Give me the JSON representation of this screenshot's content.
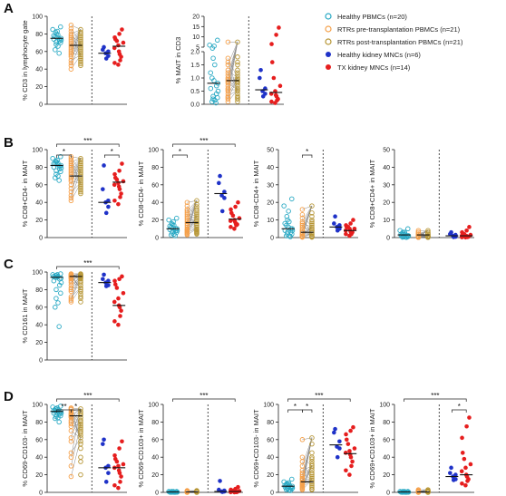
{
  "colors": {
    "healthy_pbmc": "#29a9c4",
    "rtr_pre": "#f5a04a",
    "rtr_post": "#b69534",
    "healthy_kidney": "#1f32c8",
    "tx_kidney": "#e61e1e",
    "connector": "#888888"
  },
  "legend": [
    {
      "label": "Healthy PBMCs (n=20)",
      "marker": "open",
      "color_key": "healthy_pbmc"
    },
    {
      "label": "RTRs pre-transplantation PBMCs (n=21)",
      "marker": "open",
      "color_key": "rtr_pre"
    },
    {
      "label": "RTRs post-transplantation PBMCs (n=21)",
      "marker": "open",
      "color_key": "rtr_post"
    },
    {
      "label": "Healthy kidney MNCs (n=6)",
      "marker": "filled",
      "color_key": "healthy_kidney"
    },
    {
      "label": "TX kidney MNCs (n=14)",
      "marker": "filled",
      "color_key": "tx_kidney"
    }
  ],
  "chart_data": [
    {
      "id": "A1",
      "panel": "A",
      "type": "scatter",
      "ylabel": "% CD3 in lymphocyte gate",
      "ylim": [
        0,
        100
      ],
      "yticks": [
        0,
        20,
        40,
        60,
        80,
        100
      ],
      "medians": [
        75,
        67,
        58,
        66
      ],
      "stars": [],
      "groups": [
        [
          88,
          85,
          83,
          82,
          80,
          79,
          78,
          77,
          76,
          75,
          74,
          74,
          73,
          72,
          71,
          70,
          68,
          66,
          62,
          58
        ],
        [
          90,
          86,
          83,
          80,
          78,
          76,
          74,
          72,
          70,
          68,
          66,
          64,
          62,
          60,
          58,
          56,
          54,
          50,
          47,
          44,
          40
        ],
        [
          85,
          82,
          80,
          78,
          76,
          74,
          72,
          70,
          68,
          66,
          64,
          62,
          60,
          58,
          56,
          54,
          52,
          50,
          48,
          46,
          44
        ],
        [
          65,
          62,
          60,
          58,
          55,
          52
        ],
        [
          85,
          80,
          76,
          74,
          72,
          70,
          67,
          64,
          60,
          57,
          54,
          50,
          47,
          45
        ]
      ]
    },
    {
      "id": "A2",
      "panel": "A",
      "type": "scatter",
      "ylabel": "% MAIT in CD3",
      "broken_axis": true,
      "ylim_lower": [
        0,
        2.0
      ],
      "ylim_upper": [
        5,
        20
      ],
      "yticks_lower": [
        0.0,
        0.5,
        1.0,
        1.5,
        2.0
      ],
      "yticks_upper": [
        5,
        10,
        15,
        20
      ],
      "medians": [
        0.8,
        0.9,
        0.55,
        0.45
      ],
      "stars": [],
      "groups": [
        [
          8.4,
          6.0,
          5.5,
          4.5,
          1.75,
          1.5,
          1.2,
          1.0,
          0.9,
          0.8,
          0.7,
          0.6,
          0.5,
          0.4,
          0.3,
          0.25,
          0.2,
          0.15,
          0.1,
          0.05
        ],
        [
          7.5,
          1.75,
          1.6,
          1.5,
          1.3,
          1.2,
          1.1,
          1.0,
          0.95,
          0.9,
          0.85,
          0.8,
          0.7,
          0.6,
          0.55,
          0.5,
          0.4,
          0.3,
          0.25,
          0.2,
          0.1
        ],
        [
          7.5,
          1.8,
          1.6,
          1.5,
          1.3,
          1.2,
          1.1,
          1.0,
          0.95,
          0.9,
          0.85,
          0.8,
          0.7,
          0.6,
          0.55,
          0.5,
          0.4,
          0.3,
          0.25,
          0.2,
          0.1
        ],
        [
          1.3,
          1.0,
          0.6,
          0.5,
          0.4,
          0.3
        ],
        [
          14.5,
          11.0,
          6.5,
          1.6,
          1.0,
          0.7,
          0.5,
          0.4,
          0.35,
          0.3,
          0.2,
          0.15,
          0.1,
          0.05
        ]
      ]
    },
    {
      "id": "B1",
      "panel": "B",
      "type": "scatter",
      "ylabel": "% CD8+CD4- in MAIT",
      "ylim": [
        0,
        100
      ],
      "yticks": [
        0,
        20,
        40,
        60,
        80,
        100
      ],
      "medians": [
        82,
        70,
        40,
        63
      ],
      "stars": [
        "*",
        "*",
        "***"
      ],
      "groups": [
        [
          92,
          90,
          88,
          87,
          86,
          85,
          84,
          84,
          83,
          82,
          81,
          80,
          79,
          78,
          76,
          75,
          72,
          70,
          68,
          65
        ],
        [
          92,
          90,
          88,
          86,
          84,
          82,
          80,
          78,
          76,
          74,
          72,
          70,
          68,
          66,
          64,
          60,
          56,
          52,
          48,
          45,
          42
        ],
        [
          90,
          88,
          86,
          84,
          82,
          80,
          78,
          76,
          74,
          72,
          70,
          68,
          66,
          64,
          62,
          60,
          58,
          56,
          54,
          52,
          50
        ],
        [
          82,
          55,
          42,
          40,
          35,
          28
        ],
        [
          84,
          76,
          72,
          68,
          66,
          64,
          62,
          60,
          58,
          55,
          50,
          46,
          42,
          38
        ]
      ]
    },
    {
      "id": "B2",
      "panel": "B",
      "type": "scatter",
      "ylabel": "% CD8-CD4- in MAIT",
      "ylim": [
        0,
        100
      ],
      "yticks": [
        0,
        20,
        40,
        60,
        80,
        100
      ],
      "medians": [
        10,
        17,
        50,
        21
      ],
      "stars": [
        "*",
        "***"
      ],
      "groups": [
        [
          22,
          20,
          18,
          16,
          15,
          14,
          13,
          12,
          11,
          10,
          10,
          9,
          8,
          8,
          7,
          6,
          5,
          4,
          3,
          2
        ],
        [
          40,
          36,
          32,
          30,
          28,
          26,
          24,
          22,
          20,
          18,
          16,
          14,
          12,
          10,
          9,
          8,
          7,
          6,
          5,
          4,
          3
        ],
        [
          42,
          38,
          35,
          32,
          30,
          28,
          26,
          24,
          22,
          20,
          18,
          16,
          14,
          12,
          10,
          9,
          8,
          7,
          6,
          5,
          4
        ],
        [
          70,
          62,
          52,
          48,
          45,
          30
        ],
        [
          40,
          35,
          32,
          28,
          25,
          22,
          20,
          19,
          18,
          16,
          15,
          14,
          12,
          10
        ]
      ]
    },
    {
      "id": "B3",
      "panel": "B",
      "type": "scatter",
      "ylabel": "% CD8-CD4+ in MAIT",
      "ylim": [
        0,
        50
      ],
      "yticks": [
        0,
        10,
        20,
        30,
        40,
        50
      ],
      "medians": [
        5,
        3,
        6,
        4
      ],
      "stars": [
        "*"
      ],
      "groups": [
        [
          22,
          18,
          15,
          12,
          10,
          9,
          8,
          7,
          6,
          5,
          5,
          4,
          4,
          3,
          3,
          2,
          2,
          1,
          1,
          0.5
        ],
        [
          16,
          13,
          11,
          9,
          8,
          7,
          6,
          5,
          4,
          4,
          3,
          3,
          2,
          2,
          2,
          1,
          1,
          1,
          0.5,
          0.5,
          0.2
        ],
        [
          18,
          14,
          12,
          10,
          9,
          8,
          7,
          6,
          5,
          5,
          4,
          4,
          3,
          3,
          2,
          2,
          1,
          1,
          0.5,
          0.5,
          0.2
        ],
        [
          12,
          8,
          7,
          6,
          5,
          4
        ],
        [
          10,
          8,
          7,
          6,
          6,
          5,
          5,
          4,
          4,
          3,
          3,
          2,
          2,
          1
        ]
      ]
    },
    {
      "id": "B4",
      "panel": "B",
      "type": "scatter",
      "ylabel": "% CD8+CD4+ in MAIT",
      "ylim": [
        0,
        50
      ],
      "yticks": [
        0,
        10,
        20,
        30,
        40,
        50
      ],
      "medians": [
        1.5,
        1.5,
        1,
        1
      ],
      "stars": [],
      "groups": [
        [
          5,
          4,
          3,
          3,
          2,
          2,
          2,
          2,
          1,
          1,
          1,
          1,
          1,
          1,
          0.5,
          0.5,
          0.5,
          0.3,
          0.2,
          0.1
        ],
        [
          4,
          3,
          3,
          2,
          2,
          2,
          2,
          1,
          1,
          1,
          1,
          1,
          1,
          0.5,
          0.5,
          0.5,
          0.5,
          0.3,
          0.2,
          0.1,
          0.1
        ],
        [
          4,
          3,
          3,
          2,
          2,
          2,
          2,
          1,
          1,
          1,
          1,
          1,
          1,
          0.5,
          0.5,
          0.5,
          0.5,
          0.3,
          0.2,
          0.1,
          0.1
        ],
        [
          3,
          2,
          1.5,
          1,
          0.5,
          0.3
        ],
        [
          6,
          4,
          3,
          2,
          2,
          1.5,
          1,
          1,
          1,
          0.5,
          0.5,
          0.3,
          0.2,
          0.1
        ]
      ]
    },
    {
      "id": "C1",
      "panel": "C",
      "type": "scatter",
      "ylabel": "% CD161 in MAIT",
      "ylim": [
        0,
        100
      ],
      "yticks": [
        0,
        20,
        40,
        60,
        80,
        100
      ],
      "medians": [
        94,
        95,
        88,
        62
      ],
      "stars": [
        "***"
      ],
      "groups": [
        [
          98,
          97,
          97,
          96,
          96,
          95,
          95,
          94,
          94,
          93,
          92,
          90,
          88,
          85,
          80,
          76,
          70,
          65,
          60,
          38
        ],
        [
          98,
          97,
          97,
          96,
          96,
          95,
          95,
          94,
          94,
          93,
          92,
          90,
          88,
          85,
          82,
          80,
          78,
          72,
          70,
          68,
          66
        ],
        [
          98,
          97,
          97,
          96,
          96,
          95,
          95,
          94,
          94,
          93,
          92,
          90,
          88,
          85,
          82,
          80,
          78,
          75,
          72,
          70,
          66
        ],
        [
          97,
          92,
          90,
          88,
          85,
          84
        ],
        [
          95,
          92,
          90,
          86,
          82,
          76,
          70,
          66,
          62,
          60,
          56,
          50,
          44,
          40
        ]
      ]
    },
    {
      "id": "D1",
      "panel": "D",
      "type": "scatter",
      "ylabel": "% CD69-CD103- in MAIT",
      "ylim": [
        0,
        100
      ],
      "yticks": [
        0,
        20,
        40,
        60,
        80,
        100
      ],
      "medians": [
        92,
        87,
        28,
        28
      ],
      "stars": [
        "**",
        "*",
        "***"
      ],
      "groups": [
        [
          98,
          97,
          96,
          95,
          95,
          94,
          93,
          93,
          92,
          92,
          91,
          90,
          90,
          89,
          88,
          87,
          86,
          85,
          84,
          80
        ],
        [
          96,
          95,
          94,
          92,
          90,
          89,
          88,
          87,
          86,
          85,
          82,
          80,
          78,
          75,
          70,
          62,
          58,
          45,
          40,
          30,
          18
        ],
        [
          95,
          92,
          90,
          88,
          85,
          82,
          80,
          78,
          76,
          74,
          72,
          70,
          68,
          65,
          62,
          58,
          55,
          50,
          40,
          35,
          20
        ],
        [
          60,
          55,
          30,
          28,
          22,
          12
        ],
        [
          58,
          50,
          42,
          38,
          35,
          32,
          30,
          28,
          25,
          22,
          18,
          12,
          8,
          5
        ]
      ]
    },
    {
      "id": "D2",
      "panel": "D",
      "type": "scatter",
      "ylabel": "% CD69-CD103+ in MAIT",
      "ylim": [
        0,
        100
      ],
      "yticks": [
        0,
        20,
        40,
        60,
        80,
        100
      ],
      "medians": [
        0.5,
        0.5,
        1,
        1
      ],
      "stars": [
        "***"
      ],
      "groups": [
        [
          1,
          1,
          1,
          1,
          0.5,
          0.5,
          0.5,
          0.5,
          0.5,
          0.5,
          0.3,
          0.3,
          0.3,
          0.3,
          0.2,
          0.2,
          0.2,
          0.1,
          0.1,
          0.1
        ],
        [
          2,
          1,
          1,
          1,
          1,
          0.5,
          0.5,
          0.5,
          0.5,
          0.5,
          0.5,
          0.3,
          0.3,
          0.3,
          0.3,
          0.2,
          0.2,
          0.2,
          0.1,
          0.1,
          0.1
        ],
        [
          2,
          1,
          1,
          1,
          1,
          0.5,
          0.5,
          0.5,
          0.5,
          0.5,
          0.5,
          0.3,
          0.3,
          0.3,
          0.3,
          0.2,
          0.2,
          0.2,
          0.1,
          0.1,
          0.1
        ],
        [
          13,
          3,
          2,
          1,
          1,
          0.5
        ],
        [
          6,
          4,
          3,
          2,
          2,
          1.5,
          1,
          1,
          1,
          0.5,
          0.5,
          0.3,
          0.2,
          0.1
        ]
      ]
    },
    {
      "id": "D3",
      "panel": "D",
      "type": "scatter",
      "ylabel": "% CD69+CD103- in MAIT",
      "ylim": [
        0,
        100
      ],
      "yticks": [
        0,
        20,
        40,
        60,
        80,
        100
      ],
      "medians": [
        7,
        12,
        54,
        44
      ],
      "stars": [
        "*",
        "*",
        "***"
      ],
      "groups": [
        [
          15,
          12,
          11,
          10,
          9,
          9,
          8,
          8,
          7,
          7,
          6,
          6,
          5,
          5,
          5,
          4,
          4,
          3,
          3,
          2
        ],
        [
          60,
          40,
          35,
          30,
          25,
          22,
          20,
          18,
          16,
          15,
          14,
          12,
          11,
          10,
          9,
          8,
          7,
          6,
          5,
          4,
          3
        ],
        [
          62,
          55,
          45,
          40,
          38,
          35,
          32,
          30,
          28,
          25,
          22,
          20,
          18,
          16,
          14,
          12,
          10,
          8,
          6,
          4,
          3
        ],
        [
          72,
          68,
          58,
          52,
          50,
          40
        ],
        [
          74,
          70,
          66,
          60,
          55,
          50,
          47,
          45,
          43,
          40,
          35,
          30,
          25,
          20
        ]
      ]
    },
    {
      "id": "D4",
      "panel": "D",
      "type": "scatter",
      "ylabel": "% CD69+CD103+ in MAIT",
      "ylim": [
        0,
        100
      ],
      "yticks": [
        0,
        20,
        40,
        60,
        80,
        100
      ],
      "medians": [
        0.5,
        0.5,
        18,
        20
      ],
      "stars": [
        "*",
        "***"
      ],
      "groups": [
        [
          1,
          1,
          1,
          1,
          0.5,
          0.5,
          0.5,
          0.5,
          0.5,
          0.5,
          0.3,
          0.3,
          0.3,
          0.3,
          0.2,
          0.2,
          0.2,
          0.1,
          0.1,
          0.1
        ],
        [
          3,
          2,
          2,
          1,
          1,
          1,
          1,
          0.5,
          0.5,
          0.5,
          0.5,
          0.5,
          0.3,
          0.3,
          0.3,
          0.2,
          0.2,
          0.2,
          0.1,
          0.1,
          0.1
        ],
        [
          3,
          2,
          2,
          1,
          1,
          1,
          1,
          0.5,
          0.5,
          0.5,
          0.5,
          0.5,
          0.3,
          0.3,
          0.3,
          0.2,
          0.2,
          0.2,
          0.1,
          0.1,
          0.1
        ],
        [
          28,
          22,
          20,
          18,
          15,
          14
        ],
        [
          85,
          75,
          62,
          45,
          38,
          32,
          28,
          24,
          20,
          18,
          15,
          13,
          10,
          8
        ]
      ]
    }
  ],
  "panel_letters": [
    "A",
    "B",
    "C",
    "D"
  ]
}
